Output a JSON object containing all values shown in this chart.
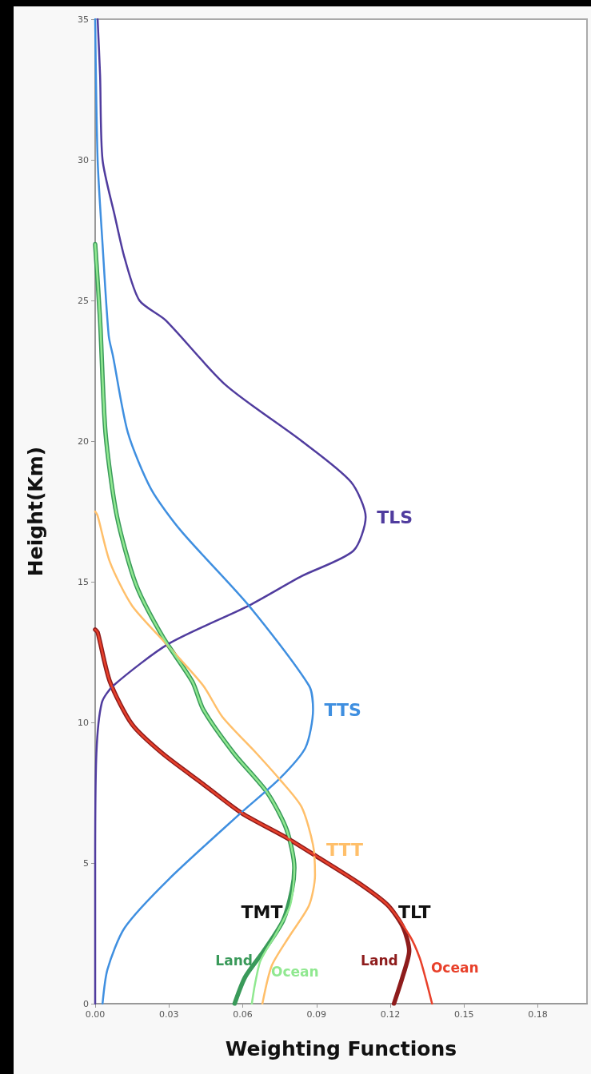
{
  "chart_data": {
    "type": "line",
    "xlabel": "Weighting Functions",
    "ylabel": "Height(Km)",
    "xlim": [
      0,
      0.2
    ],
    "ylim": [
      0,
      35
    ],
    "xticks": [
      {
        "value": 0,
        "label": "0.00"
      },
      {
        "value": 0.03,
        "label": "0.03"
      },
      {
        "value": 0.06,
        "label": "0.06"
      },
      {
        "value": 0.09,
        "label": "0.09"
      },
      {
        "value": 0.12,
        "label": "0.12"
      },
      {
        "value": 0.15,
        "label": "0.15"
      },
      {
        "value": 0.18,
        "label": "0.18"
      }
    ],
    "yticks": [
      0,
      5,
      10,
      15,
      20,
      25,
      30,
      35
    ],
    "grid": false,
    "legend": false,
    "marker": "none",
    "line_style": "solid",
    "series": [
      {
        "name": "TLS",
        "color": "#503c9e",
        "x": [
          0.001,
          0.002,
          0.003,
          0.008,
          0.012,
          0.018,
          0.0286,
          0.053,
          0.084,
          0.104,
          0.11,
          0.105,
          0.084,
          0.0625,
          0.03,
          0.0073,
          0.0027,
          0.0005,
          0,
          0
        ],
        "values": [
          35,
          33,
          30,
          28,
          26.5,
          25,
          24.3,
          22,
          20,
          18.55,
          17.3,
          16.1,
          15.2,
          14.15,
          12.8,
          11.3,
          10.7,
          8.9,
          5,
          0
        ]
      },
      {
        "name": "TTS",
        "color": "#3f8fe0",
        "x": [
          0,
          0.001,
          0.003,
          0.0055,
          0.0073,
          0.0133,
          0.0227,
          0.035,
          0.0625,
          0.087,
          0.0886,
          0.0855,
          0.075,
          0.0595,
          0.03,
          0.012,
          0.005,
          0.003
        ],
        "values": [
          35,
          30,
          27,
          23.75,
          23,
          20.3,
          18.3,
          16.8,
          14.15,
          11.3,
          10.45,
          9.1,
          8,
          6.8,
          4.43,
          2.7,
          1.22,
          0
        ]
      },
      {
        "name": "TTT",
        "color": "#ffbf6a",
        "x": [
          0,
          0.001,
          0.006,
          0.015,
          0.0288,
          0.044,
          0.0517,
          0.0656,
          0.0748,
          0.0839,
          0.0886,
          0.0894,
          0.087,
          0.079,
          0.0718,
          0.068
        ],
        "values": [
          17.5,
          17.35,
          15.7,
          14.15,
          12.8,
          11.3,
          10.2,
          8.9,
          8,
          7,
          5.64,
          4.57,
          3.5,
          2.4,
          1.35,
          0
        ]
      },
      {
        "name": "Land",
        "color": "#3a9a5a",
        "x": [
          0,
          0.002,
          0.0042,
          0.0088,
          0.0166,
          0.0273,
          0.0395,
          0.044,
          0.0564,
          0.07,
          0.0778,
          0.081,
          0.08,
          0.0764,
          0.0686,
          0.061,
          0.0567
        ],
        "values": [
          27,
          24.3,
          20.3,
          17.35,
          14.9,
          13.07,
          11.45,
          10.45,
          8.9,
          7.5,
          6.2,
          4.83,
          4.03,
          2.95,
          1.88,
          0.95,
          0
        ]
      },
      {
        "name": "Ocean",
        "color": "#90e890",
        "x": [
          0,
          0.002,
          0.0042,
          0.0088,
          0.0166,
          0.0273,
          0.0395,
          0.044,
          0.0564,
          0.07,
          0.0778,
          0.081,
          0.0793,
          0.073,
          0.0695,
          0.067,
          0.065,
          0.0637
        ],
        "values": [
          27,
          24.3,
          20.3,
          17.35,
          14.9,
          13.07,
          11.45,
          10.45,
          8.9,
          7.5,
          6.2,
          4.83,
          3.5,
          2.4,
          1.9,
          1.48,
          0.7,
          0
        ]
      },
      {
        "name": "Land",
        "color": "#8e1c1c",
        "x": [
          0,
          0.001,
          0.006,
          0.015,
          0.0273,
          0.044,
          0.0595,
          0.0778,
          0.09,
          0.107,
          0.119,
          0.1253,
          0.1277,
          0.125,
          0.1215
        ],
        "values": [
          13.3,
          13.2,
          11.45,
          9.93,
          8.9,
          7.8,
          6.78,
          5.9,
          5.24,
          4.3,
          3.5,
          2.7,
          1.88,
          0.95,
          0
        ]
      },
      {
        "name": "Ocean",
        "color": "#e8402a",
        "x": [
          0,
          0.001,
          0.006,
          0.015,
          0.0273,
          0.044,
          0.0595,
          0.0778,
          0.09,
          0.107,
          0.119,
          0.128,
          0.132,
          0.1346,
          0.137
        ],
        "values": [
          13.3,
          13.2,
          11.45,
          9.93,
          8.9,
          7.8,
          6.78,
          5.9,
          5.24,
          4.3,
          3.5,
          2.4,
          1.62,
          0.82,
          0
        ]
      }
    ],
    "annotations": [
      "TMT",
      "TLT"
    ]
  }
}
